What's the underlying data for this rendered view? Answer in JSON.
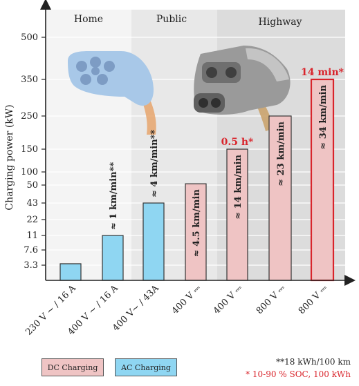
{
  "chart_data": {
    "type": "bar",
    "title": "",
    "xlabel": "",
    "ylabel": "Charging power (kW)",
    "y_tick_labels": [
      "3.3",
      "7.6",
      "11",
      "22",
      "43",
      "50",
      "100",
      "150",
      "250",
      "350",
      "500"
    ],
    "zones": [
      "Home",
      "Public",
      "Highway"
    ],
    "categories": [
      "230 V ~ / 16 A",
      "400 V ~ / 16 A",
      "400 V~ / 43A",
      "400 V ⎓",
      "400 V ⎓",
      "800 V ⎓",
      "800 V ⎓"
    ],
    "values": [
      3.7,
      11,
      43,
      55,
      150,
      250,
      350
    ],
    "charging_type": [
      "AC",
      "AC",
      "AC",
      "DC",
      "DC",
      "DC",
      "DC"
    ],
    "bar_labels": [
      "",
      "≈ 1 km/min**",
      "≈ 4 km/min**",
      "≈ 4.5 km/min",
      "≈ 14 km/min",
      "≈ 23 km/min",
      "≈ 34 km/min"
    ],
    "top_labels": [
      "",
      "",
      "",
      "",
      "0.5 h*",
      "",
      "14 min*"
    ],
    "legend": [
      "DC Charging",
      "AC Charging"
    ],
    "notes": [
      "**18 kWh/100 km",
      "* 10-90 % SOC, 100 kWh"
    ],
    "colors": {
      "ac": "#8fd6f2",
      "dc": "#efc4c4",
      "highlight": "#d9242b"
    },
    "grid": true
  }
}
